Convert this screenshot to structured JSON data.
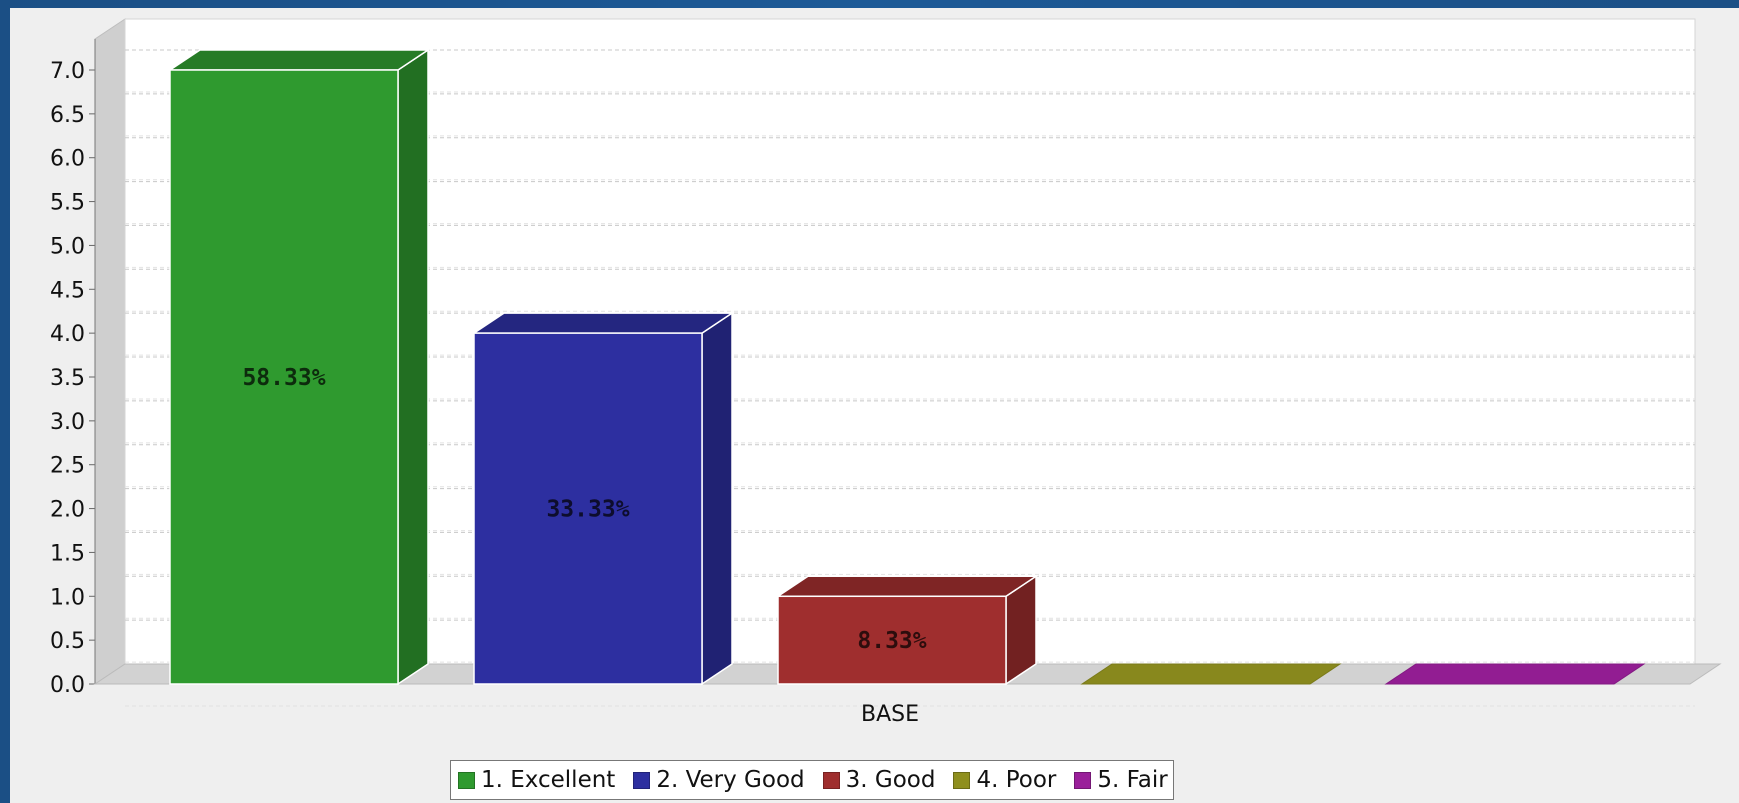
{
  "chart_data": {
    "type": "bar",
    "categories": [
      "BASE"
    ],
    "series": [
      {
        "name": "1. Excellent",
        "values": [
          7
        ],
        "data_label": "58.33%",
        "color": "#2f9a2f"
      },
      {
        "name": "2. Very Good",
        "values": [
          4
        ],
        "data_label": "33.33%",
        "color": "#2d2fa0"
      },
      {
        "name": "3. Good",
        "values": [
          1
        ],
        "data_label": "8.33%",
        "color": "#9f2e2e"
      },
      {
        "name": "4. Poor",
        "values": [
          0
        ],
        "data_label": "",
        "color": "#8f8f1e"
      },
      {
        "name": "5. Fair",
        "values": [
          0
        ],
        "data_label": "",
        "color": "#9a1f9a"
      }
    ],
    "title": "",
    "xlabel": "",
    "ylabel": "",
    "ylim": [
      0,
      7.0
    ],
    "y_ticks": [
      "0.0",
      "0.5",
      "1.0",
      "1.5",
      "2.0",
      "2.5",
      "3.0",
      "3.5",
      "4.0",
      "4.5",
      "5.0",
      "5.5",
      "6.0",
      "6.5",
      "7.0"
    ],
    "grid": true,
    "legend_placement": "bottom-center",
    "style": "3d"
  }
}
